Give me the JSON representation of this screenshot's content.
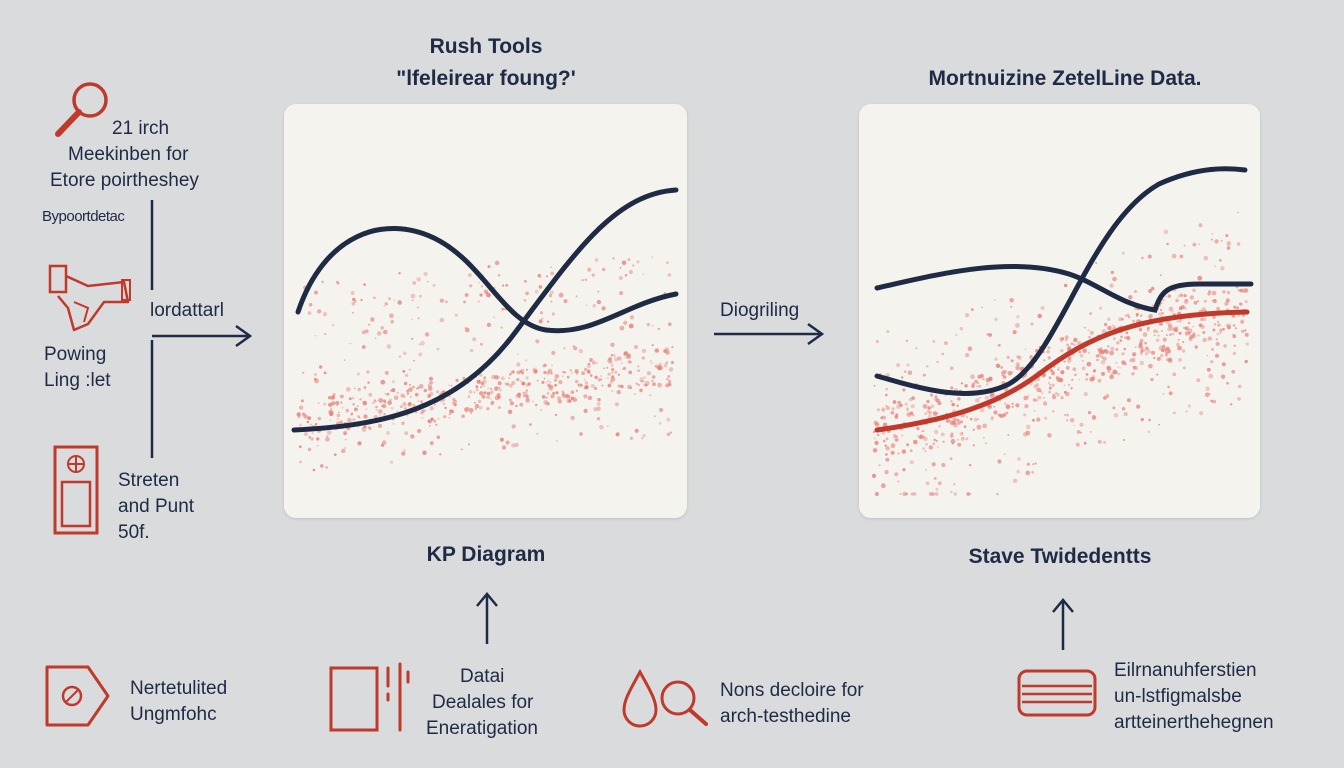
{
  "colors": {
    "accent": "#c0392b",
    "navy": "#1f2a44",
    "dots": "#e8807a",
    "panel": "#f4f3ee",
    "background": "#d9dbdd"
  },
  "left_column": {
    "search": {
      "icon": "magnifier-icon",
      "lines": [
        "21 irch",
        "Meekinben for",
        "Etore poirtheshey"
      ]
    },
    "small_label": "Bypoortdetac",
    "tool": {
      "icon": "wrench-tool-icon",
      "lines": [
        "Powing",
        "Ling :let"
      ]
    },
    "arrow_label": "lordattarl",
    "device": {
      "icon": "device-icon",
      "lines": [
        "Streten",
        "and Punt",
        "50f."
      ]
    }
  },
  "panel_left": {
    "heading_lines": [
      "Rush Tools",
      "\"lfeleirear foung?'"
    ],
    "caption": "KP Diagram"
  },
  "middle_arrow_label": "Diogriling",
  "panel_right": {
    "heading": "Mortnuizine ZetelLine Data.",
    "caption": "Stave Twidedentts"
  },
  "bottom_row": [
    {
      "icon": "tag-icon",
      "lines": [
        "Nertetulited",
        "Ungmfohc"
      ]
    },
    {
      "icon": "document-icon",
      "lines": [
        "Datai",
        "Dealales for",
        "Eneratigation"
      ]
    },
    {
      "icon": "drop-search-icon",
      "lines": [
        "Nons decloire for",
        "arch-testhedine"
      ]
    },
    {
      "icon": "database-icon",
      "lines": [
        "Eilrnanuhferstien",
        "un-lstfigmalsbe",
        "artteinerthehegnen"
      ]
    }
  ]
}
